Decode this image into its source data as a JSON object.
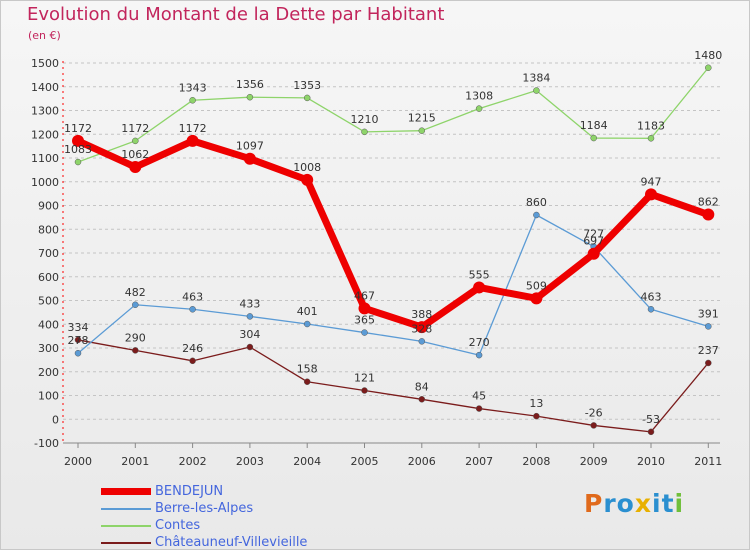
{
  "header": {
    "title": "Evolution du Montant de la Dette par Habitant",
    "unit": "(en €)"
  },
  "logo": {
    "text": "Proxiti",
    "letters": [
      {
        "ch": "P",
        "color": "#e06a1c"
      },
      {
        "ch": "r",
        "color": "#2a8fd0"
      },
      {
        "ch": "o",
        "color": "#2a8fd0"
      },
      {
        "ch": "x",
        "color": "#e8b000"
      },
      {
        "ch": "i",
        "color": "#2a8fd0"
      },
      {
        "ch": "t",
        "color": "#2a8fd0"
      },
      {
        "ch": "i",
        "color": "#6fbf3a"
      }
    ]
  },
  "chart_data": {
    "type": "line",
    "title": "Evolution du Montant de la Dette par Habitant",
    "ylabel": "(en €)",
    "xlabel": "",
    "x": [
      2000,
      2001,
      2002,
      2003,
      2004,
      2005,
      2006,
      2007,
      2008,
      2009,
      2010,
      2011
    ],
    "ylim": [
      -100,
      1500
    ],
    "yticks": [
      -100,
      0,
      100,
      200,
      300,
      400,
      500,
      600,
      700,
      800,
      900,
      1000,
      1100,
      1200,
      1300,
      1400,
      1500
    ],
    "grid": "horizontal dashed",
    "legend_position": "bottom-left",
    "series": [
      {
        "name": "BENDEJUN",
        "color": "#ee0000",
        "width": 7,
        "marker_r": 6,
        "values": [
          1172,
          1062,
          1172,
          1097,
          1008,
          467,
          388,
          555,
          509,
          697,
          947,
          862
        ]
      },
      {
        "name": "Berre-les-Alpes",
        "color": "#5b9bd5",
        "width": 1.3,
        "marker_r": 3,
        "values": [
          278,
          482,
          463,
          433,
          401,
          365,
          328,
          270,
          860,
          727,
          463,
          391
        ]
      },
      {
        "name": "Contes",
        "color": "#8ed46a",
        "width": 1.3,
        "marker_r": 3,
        "values": [
          1083,
          1172,
          1343,
          1356,
          1353,
          1210,
          1215,
          1308,
          1384,
          1184,
          1183,
          1480
        ]
      },
      {
        "name": "Châteauneuf-Villevieille",
        "color": "#7b1c1c",
        "width": 1.3,
        "marker_r": 3,
        "values": [
          334,
          290,
          246,
          304,
          158,
          121,
          84,
          45,
          13,
          -26,
          -53,
          237
        ]
      }
    ]
  }
}
